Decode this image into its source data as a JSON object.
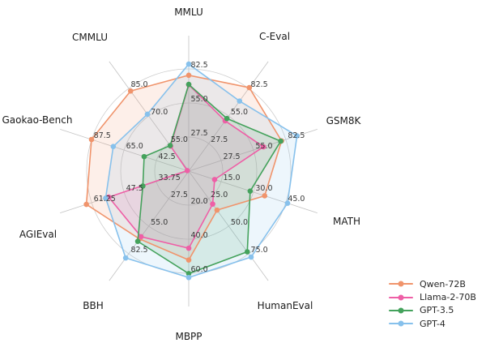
{
  "figure": {
    "background": "#ffffff"
  },
  "chart_data": {
    "type": "radar",
    "categories": [
      "MMLU",
      "C-Eval",
      "GSM8K",
      "MATH",
      "HumanEval",
      "MBPP",
      "BBH",
      "AGIEval",
      "Gaokao-Bench",
      "CMMLU"
    ],
    "axes": [
      {
        "label": "MMLU",
        "center_value": 0,
        "ring_values": [
          27.5,
          55.0,
          82.5
        ],
        "tick_labels": [
          "27.5",
          "55.0",
          "82.5"
        ]
      },
      {
        "label": "C-Eval",
        "center_value": 0,
        "ring_values": [
          27.5,
          55.0,
          82.5
        ],
        "tick_labels": [
          "27.5",
          "55.0",
          "82.5"
        ]
      },
      {
        "label": "GSM8K",
        "center_value": 0,
        "ring_values": [
          27.5,
          55.0,
          82.5
        ],
        "tick_labels": [
          "27.5",
          "55.0",
          "82.5"
        ]
      },
      {
        "label": "MATH",
        "center_value": 0,
        "ring_values": [
          15.0,
          30.0,
          45.0
        ],
        "tick_labels": [
          "15.0",
          "30.0",
          "45.0"
        ]
      },
      {
        "label": "HumanEval",
        "center_value": 0,
        "ring_values": [
          25.0,
          50.0,
          75.0
        ],
        "tick_labels": [
          "25.0",
          "50.0",
          "75.0"
        ]
      },
      {
        "label": "MBPP",
        "center_value": 0,
        "ring_values": [
          20.0,
          40.0,
          60.0
        ],
        "tick_labels": [
          "20.0",
          "40.0",
          "60.0"
        ]
      },
      {
        "label": "BBH",
        "center_value": 0,
        "ring_values": [
          27.5,
          55.0,
          82.5
        ],
        "tick_labels": [
          "27.5",
          "55.0",
          "82.5"
        ]
      },
      {
        "label": "AGIEval",
        "center_value": 20,
        "ring_values": [
          33.75,
          47.5,
          61.25
        ],
        "tick_labels": [
          "33.75",
          "47.5",
          "61.25"
        ]
      },
      {
        "label": "Gaokao-Bench",
        "center_value": 20,
        "ring_values": [
          42.5,
          65.0,
          87.5
        ],
        "tick_labels": [
          "42.5",
          "65.0",
          "87.5"
        ]
      },
      {
        "label": "CMMLU",
        "center_value": 40,
        "ring_values": [
          55.0,
          70.0,
          85.0
        ],
        "tick_labels": [
          "55.0",
          "70.0",
          "85.0"
        ]
      }
    ],
    "series": [
      {
        "name": "Qwen-72B",
        "color": "#f0946c",
        "values": [
          77.4,
          83.3,
          78.9,
          35.2,
          35.4,
          52.2,
          67.7,
          63.5,
          87.6,
          83.6
        ]
      },
      {
        "name": "Llama-2-70B",
        "color": "#ee5fa6",
        "values": [
          69.7,
          50.1,
          63.5,
          12.0,
          29.9,
          45.3,
          65.5,
          54.0,
          21.0,
          53.6
        ]
      },
      {
        "name": "GPT-3.5",
        "color": "#44a25c",
        "values": [
          70.0,
          52.5,
          78.2,
          28.5,
          73.2,
          60.2,
          70.1,
          39.5,
          51.0,
          53.9
        ]
      },
      {
        "name": "GPT-4",
        "color": "#87c1ec",
        "values": [
          86.4,
          69.9,
          92.0,
          45.8,
          78.0,
          62.5,
          86.7,
          55.3,
          72.5,
          71.0
        ]
      }
    ],
    "legend": {
      "position": "lower-right",
      "entries": [
        "Qwen-72B",
        "Llama-2-70B",
        "GPT-3.5",
        "GPT-4"
      ]
    },
    "grid": {
      "num_rings": 3,
      "ring_color": "#cdcdcd",
      "spoke_color": "#c3c3c3"
    },
    "style": {
      "background": "#ffffff",
      "fill_opacity": 0.15,
      "line_width": 1.6,
      "marker_radius": 3.3,
      "tick_color": "#3a3a3a",
      "axis_label_color": "#1a1a1a"
    }
  }
}
